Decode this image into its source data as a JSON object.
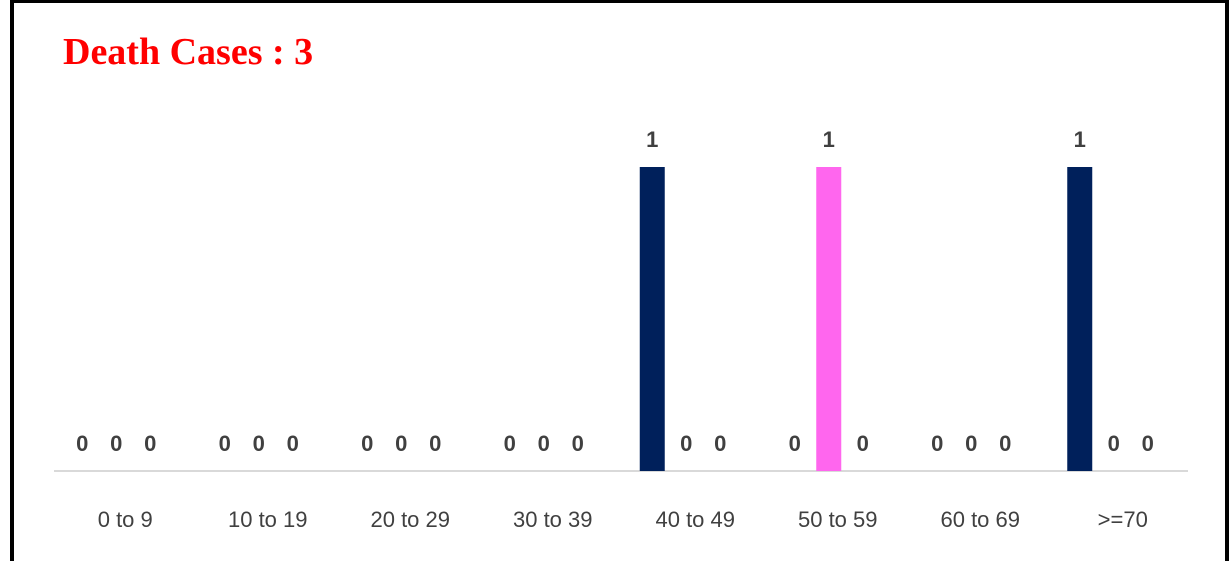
{
  "chart_data": {
    "type": "bar",
    "title": "Death Cases : 3",
    "categories": [
      "0 to 9",
      "10 to 19",
      "20 to 29",
      "30 to 39",
      "40 to 49",
      "50 to 59",
      "60 to 69",
      ">=70"
    ],
    "series": [
      {
        "values": [
          0,
          0,
          0,
          0,
          1,
          0,
          0,
          1
        ],
        "color": "#00205b"
      },
      {
        "values": [
          0,
          0,
          0,
          0,
          0,
          1,
          0,
          0
        ],
        "color": "#ff66ee"
      },
      {
        "values": [
          0,
          0,
          0,
          0,
          0,
          0,
          0,
          0
        ],
        "color": "#7fb0ff"
      }
    ],
    "ylim": [
      0,
      1
    ],
    "grid": false,
    "legend": "none"
  }
}
